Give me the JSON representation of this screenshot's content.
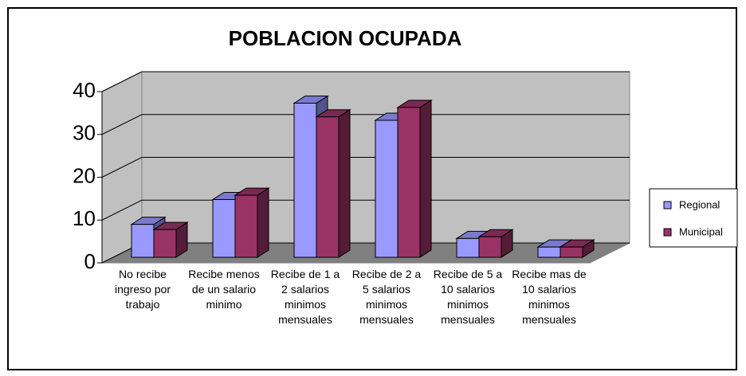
{
  "chart_data": {
    "type": "bar3d",
    "title": "POBLACION OCUPADA",
    "categories": [
      "No recibe ingreso por trabajo",
      "Recibe menos de un salario minimo",
      "Recibe de 1 a 2 salarios minimos mensuales",
      "Recibe de 2 a 5 salarios minimos mensuales",
      "Recibe de 5 a 10 salarios minimos mensuales",
      "Recibe mas de 10 salarios minimos mensuales"
    ],
    "series": [
      {
        "name": "Regional",
        "color": "#9999ff",
        "values": [
          7.7,
          13.5,
          36,
          32,
          4.4,
          2.4
        ]
      },
      {
        "name": "Municipal",
        "color": "#993366",
        "values": [
          6.5,
          14.5,
          32.8,
          35,
          4.8,
          2.4
        ]
      }
    ],
    "ylim": [
      0,
      40
    ],
    "yticks": [
      0,
      10,
      20,
      30,
      40
    ],
    "grid": true,
    "legend": "right"
  }
}
